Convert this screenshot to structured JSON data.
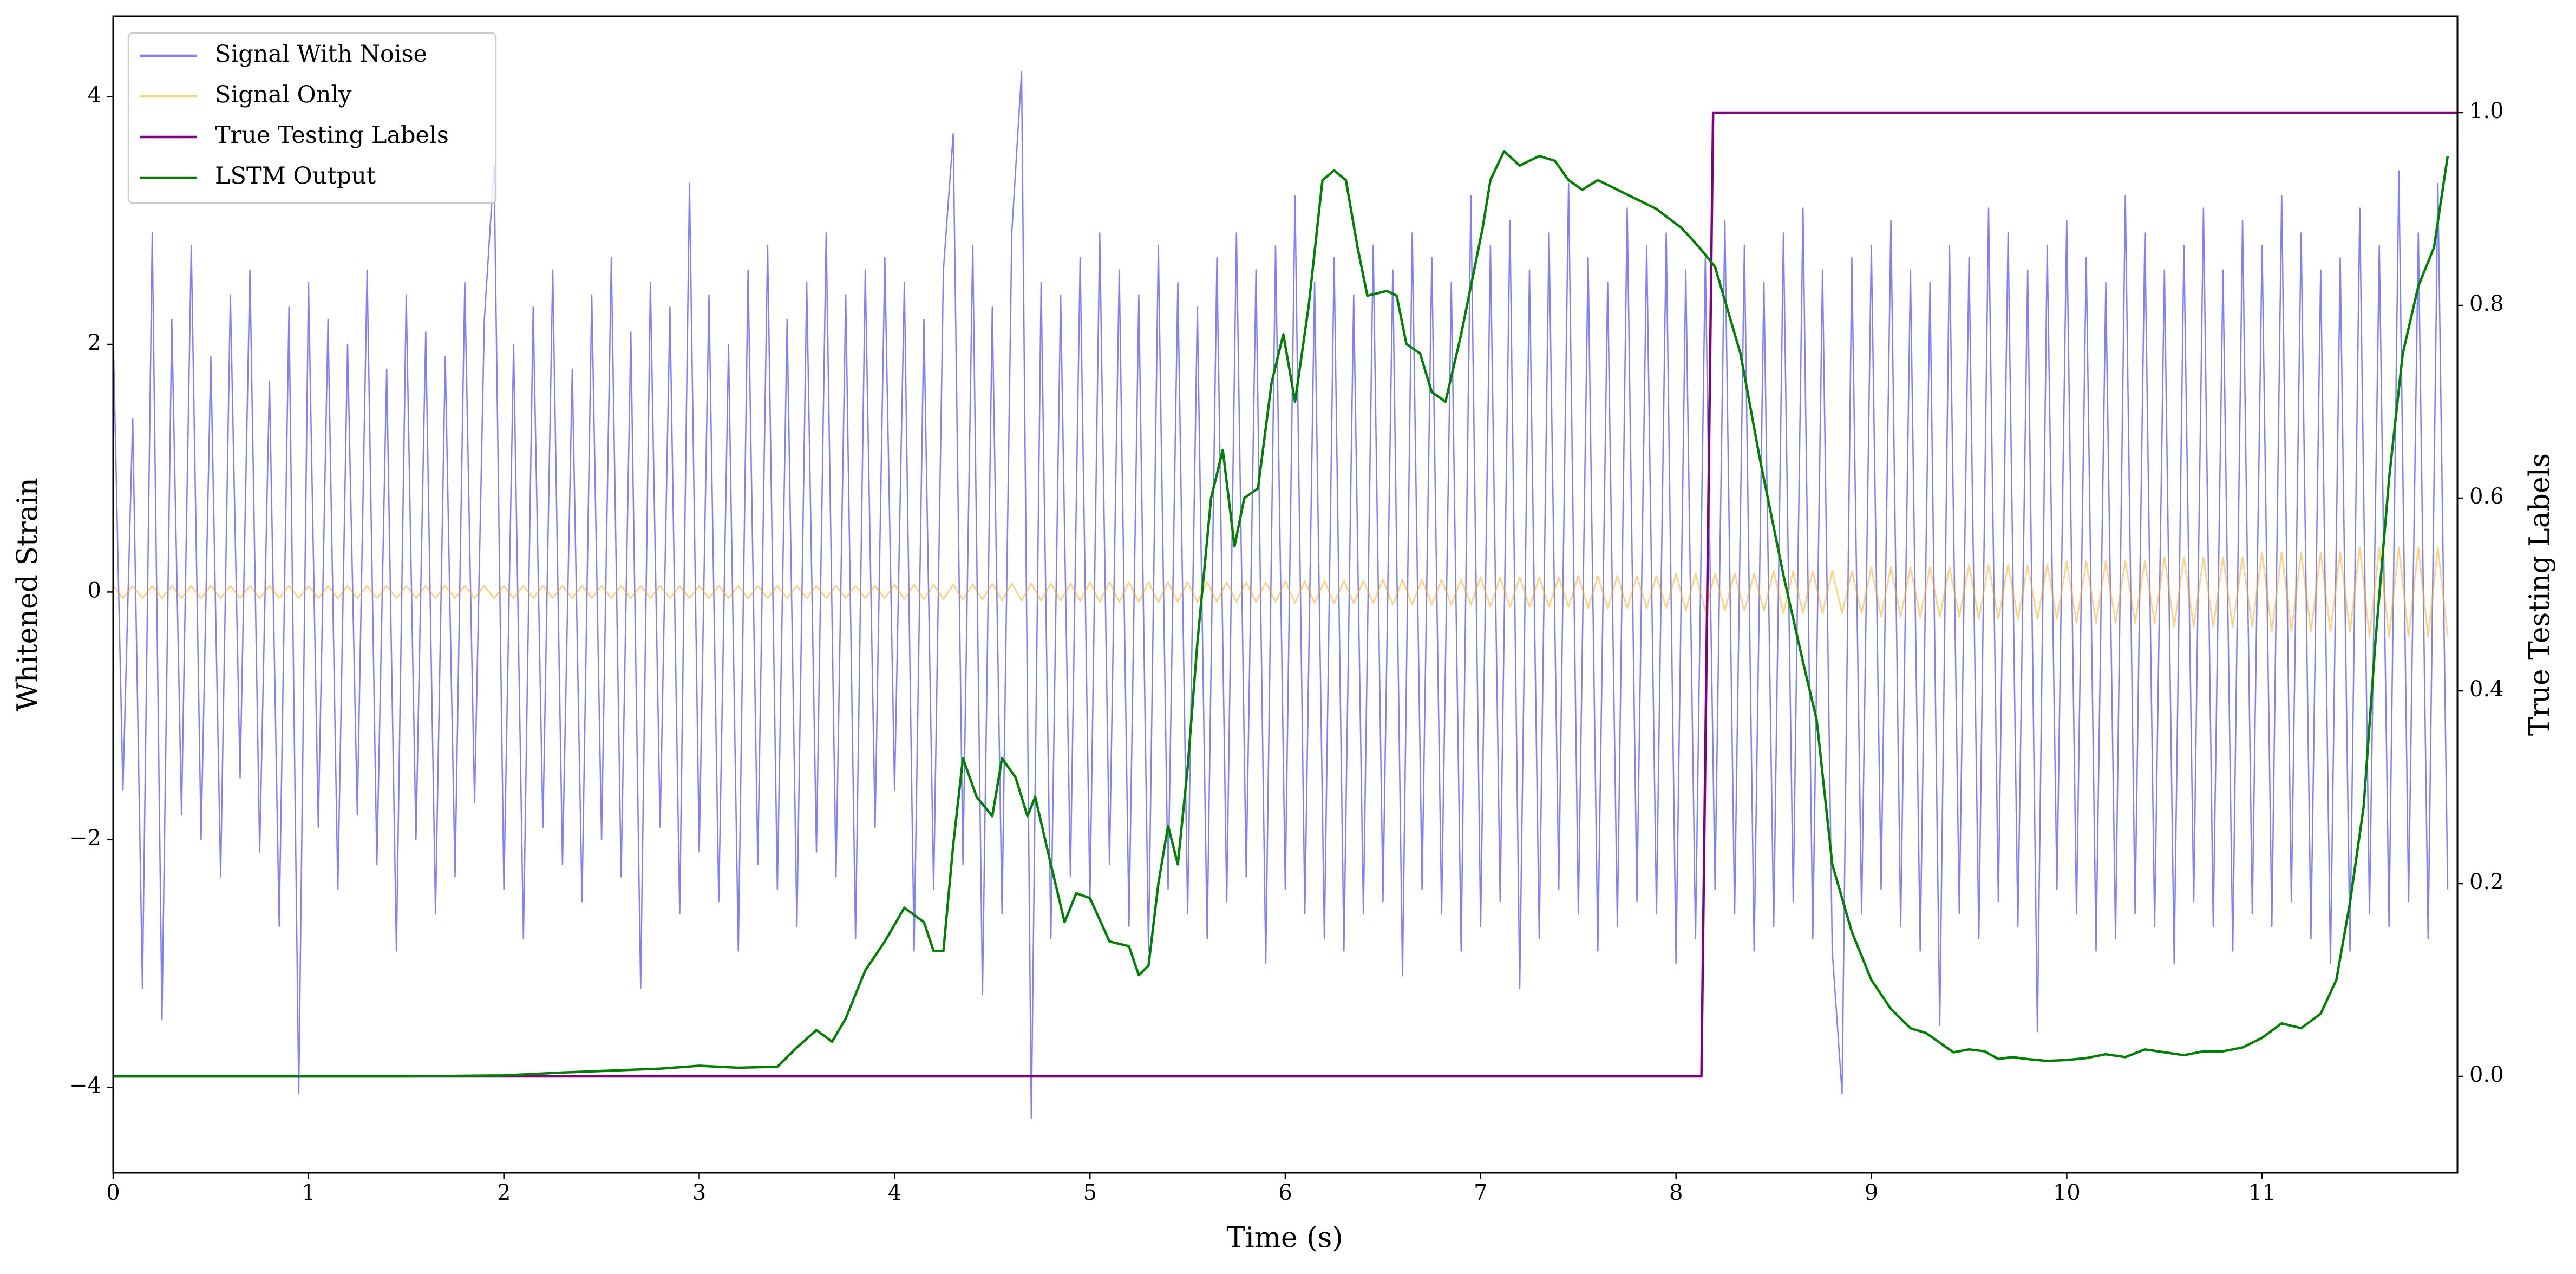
{
  "chart_data": {
    "type": "line",
    "xlabel": "Time (s)",
    "ylabel": "Whitened Strain",
    "y2label": "True Testing Labels",
    "legend": "upper left",
    "xlim": [
      0,
      12
    ],
    "xticks": [
      0,
      1,
      2,
      3,
      4,
      5,
      6,
      7,
      8,
      9,
      10,
      11
    ],
    "ylim": [
      -4.69,
      4.65
    ],
    "yticks": [
      {
        "value": -4,
        "label": "−4"
      },
      {
        "value": -2,
        "label": "−2"
      },
      0,
      2,
      4
    ],
    "y2lim": [
      -0.1,
      1.1
    ],
    "y2ticks": [
      {
        "value": 0,
        "label": "0.0"
      },
      {
        "value": 0.2,
        "label": "0.2"
      },
      {
        "value": 0.4,
        "label": "0.4"
      },
      {
        "value": 0.6,
        "label": "0.6"
      },
      {
        "value": 0.8,
        "label": "0.8"
      },
      {
        "value": 1,
        "label": "1.0"
      }
    ],
    "x": [
      0,
      0.05,
      0.1,
      0.15,
      0.2,
      0.25,
      0.3,
      0.35,
      0.4,
      0.45,
      0.5,
      0.55,
      0.6,
      0.65,
      0.7,
      0.75,
      0.8,
      0.85,
      0.9,
      0.95,
      1,
      1.05,
      1.1,
      1.15,
      1.2,
      1.25,
      1.3,
      1.35,
      1.4,
      1.45,
      1.5,
      1.55,
      1.6,
      1.65,
      1.7,
      1.75,
      1.8,
      1.85,
      1.9,
      1.95,
      2,
      2.05,
      2.1,
      2.15,
      2.2,
      2.25,
      2.3,
      2.35,
      2.4,
      2.45,
      2.5,
      2.55,
      2.6,
      2.65,
      2.7,
      2.75,
      2.8,
      2.85,
      2.9,
      2.95,
      3,
      3.05,
      3.1,
      3.15,
      3.2,
      3.25,
      3.3,
      3.35,
      3.4,
      3.45,
      3.5,
      3.55,
      3.6,
      3.65,
      3.7,
      3.75,
      3.8,
      3.85,
      3.9,
      3.95,
      4,
      4.05,
      4.1,
      4.15,
      4.2,
      4.25,
      4.3,
      4.35,
      4.4,
      4.45,
      4.5,
      4.55,
      4.6,
      4.65,
      4.7,
      4.75,
      4.8,
      4.85,
      4.9,
      4.95,
      5,
      5.05,
      5.1,
      5.15,
      5.2,
      5.25,
      5.3,
      5.35,
      5.4,
      5.45,
      5.5,
      5.55,
      5.6,
      5.65,
      5.7,
      5.75,
      5.8,
      5.85,
      5.9,
      5.95,
      6,
      6.05,
      6.1,
      6.15,
      6.2,
      6.25,
      6.3,
      6.35,
      6.4,
      6.45,
      6.5,
      6.55,
      6.6,
      6.65,
      6.7,
      6.75,
      6.8,
      6.85,
      6.9,
      6.95,
      7,
      7.05,
      7.1,
      7.15,
      7.2,
      7.25,
      7.3,
      7.35,
      7.4,
      7.45,
      7.5,
      7.55,
      7.6,
      7.65,
      7.7,
      7.75,
      7.8,
      7.85,
      7.9,
      7.95,
      8,
      8.05,
      8.1,
      8.15,
      8.2,
      8.25,
      8.3,
      8.35,
      8.4,
      8.45,
      8.5,
      8.55,
      8.6,
      8.65,
      8.7,
      8.75,
      8.8,
      8.85,
      8.9,
      8.95,
      9,
      9.05,
      9.1,
      9.15,
      9.2,
      9.25,
      9.3,
      9.35,
      9.4,
      9.45,
      9.5,
      9.55,
      9.6,
      9.65,
      9.7,
      9.75,
      9.8,
      9.85,
      9.9,
      9.95,
      10,
      10.05,
      10.1,
      10.15,
      10.2,
      10.25,
      10.3,
      10.35,
      10.4,
      10.45,
      10.5,
      10.55,
      10.6,
      10.65,
      10.7,
      10.75,
      10.8,
      10.85,
      10.9,
      10.95,
      11,
      11.05,
      11.1,
      11.15,
      11.2,
      11.25,
      11.3,
      11.35,
      11.4,
      11.45,
      11.5,
      11.55,
      11.6,
      11.65,
      11.7,
      11.75,
      11.8,
      11.85,
      11.9,
      11.95
    ],
    "series": [
      {
        "name": "Signal With Noise",
        "color": "blue",
        "alpha": 0.5,
        "axis": "y",
        "values": [
          2.1,
          -1.6,
          1.4,
          -3.2,
          2.9,
          -3.45,
          2.2,
          -1.8,
          2.8,
          -2.0,
          1.9,
          -2.3,
          2.4,
          -1.5,
          2.6,
          -2.1,
          1.7,
          -2.7,
          2.3,
          -4.05,
          2.5,
          -1.9,
          2.2,
          -2.4,
          2.0,
          -1.8,
          2.6,
          -2.2,
          1.8,
          -2.9,
          2.4,
          -2.0,
          2.1,
          -2.6,
          1.9,
          -2.3,
          2.5,
          -1.7,
          2.2,
          3.45,
          -2.4,
          2.0,
          -2.8,
          2.3,
          -1.9,
          2.6,
          -2.2,
          1.8,
          -2.5,
          2.4,
          -2.0,
          2.7,
          -2.3,
          2.1,
          -3.2,
          2.5,
          -1.9,
          2.3,
          -2.6,
          3.3,
          -2.1,
          2.4,
          -2.5,
          2.0,
          -2.9,
          2.6,
          -2.2,
          2.8,
          -2.4,
          2.2,
          -2.7,
          2.5,
          -2.1,
          2.9,
          -2.3,
          2.4,
          -2.8,
          2.6,
          -1.9,
          2.7,
          -1.6,
          2.5,
          -2.9,
          2.2,
          -2.4,
          2.6,
          3.7,
          -2.2,
          2.8,
          -3.25,
          2.3,
          -2.6,
          2.9,
          4.2,
          -4.25,
          2.5,
          -2.8,
          2.4,
          -2.3,
          2.7,
          -2.5,
          2.9,
          -2.2,
          2.6,
          -2.7,
          2.4,
          -2.9,
          2.8,
          -2.4,
          2.5,
          -2.6,
          2.3,
          -2.8,
          2.7,
          -2.5,
          2.9,
          -2.3,
          2.6,
          -3.0,
          2.8,
          -2.4,
          3.2,
          -2.6,
          2.5,
          -2.8,
          2.7,
          -2.9,
          2.4,
          -2.6,
          2.8,
          -2.5,
          2.6,
          -3.1,
          2.9,
          -2.4,
          2.7,
          -2.6,
          2.5,
          -2.9,
          3.2,
          -2.7,
          2.8,
          -2.5,
          3.0,
          -3.2,
          2.6,
          -2.8,
          2.9,
          -2.4,
          3.3,
          -2.6,
          2.7,
          -2.9,
          2.5,
          -2.7,
          3.1,
          -2.5,
          2.8,
          -2.6,
          2.9,
          -3.0,
          2.6,
          -2.8,
          2.7,
          -2.4,
          3.0,
          -2.6,
          2.8,
          -2.9,
          2.5,
          -2.7,
          2.9,
          -2.5,
          3.1,
          -2.8,
          2.6,
          -2.9,
          -4.05,
          2.7,
          -2.6,
          2.8,
          -2.4,
          3.0,
          -2.7,
          2.6,
          -2.9,
          2.5,
          -3.5,
          2.8,
          -2.6,
          2.7,
          -2.8,
          3.1,
          -2.5,
          2.9,
          -2.7,
          2.6,
          -3.55,
          2.8,
          -2.4,
          3.0,
          -2.6,
          2.7,
          -2.9,
          2.5,
          -2.8,
          3.2,
          -2.6,
          2.9,
          -2.7,
          2.6,
          -3.0,
          2.8,
          -2.5,
          3.1,
          -2.7,
          2.6,
          -2.9,
          3.0,
          -2.6,
          2.8,
          -2.7,
          3.2,
          -2.5,
          2.9,
          -2.8,
          2.6,
          -3.0,
          2.7,
          -2.9,
          3.1,
          -2.6,
          2.8,
          -2.7,
          3.4,
          -2.5,
          2.9,
          -2.8,
          3.3,
          -2.4
        ]
      },
      {
        "name": "Signal Only",
        "color": "orange",
        "alpha": 0.5,
        "axis": "y",
        "values": [
          0.05,
          -0.05,
          0.05,
          -0.05,
          0.05,
          -0.05,
          0.05,
          -0.05,
          0.05,
          -0.05,
          0.05,
          -0.05,
          0.05,
          -0.05,
          0.05,
          -0.05,
          0.05,
          -0.05,
          0.05,
          -0.05,
          0.05,
          -0.05,
          0.05,
          -0.05,
          0.05,
          -0.05,
          0.05,
          -0.05,
          0.05,
          -0.05,
          0.05,
          -0.05,
          0.05,
          -0.05,
          0.05,
          -0.05,
          0.05,
          -0.05,
          0.05,
          -0.05,
          0.05,
          -0.05,
          0.05,
          -0.05,
          0.05,
          -0.05,
          0.05,
          -0.05,
          0.05,
          -0.05,
          0.05,
          -0.05,
          0.05,
          -0.05,
          0.05,
          -0.05,
          0.05,
          -0.05,
          0.05,
          -0.05,
          0.05,
          -0.05,
          0.05,
          -0.05,
          0.05,
          -0.05,
          0.05,
          -0.05,
          0.05,
          -0.05,
          0.05,
          -0.05,
          0.05,
          -0.05,
          0.05,
          -0.05,
          0.05,
          -0.05,
          0.05,
          -0.05,
          0.06,
          -0.06,
          0.06,
          -0.06,
          0.06,
          -0.06,
          0.06,
          -0.06,
          0.06,
          -0.06,
          0.07,
          -0.07,
          0.07,
          -0.07,
          0.07,
          -0.07,
          0.07,
          -0.07,
          0.07,
          -0.07,
          0.08,
          -0.08,
          0.08,
          -0.08,
          0.08,
          -0.08,
          0.08,
          -0.08,
          0.08,
          -0.08,
          0.08,
          -0.08,
          0.08,
          -0.08,
          0.08,
          -0.08,
          0.08,
          -0.08,
          0.08,
          -0.08,
          0.09,
          -0.09,
          0.09,
          -0.09,
          0.09,
          -0.09,
          0.09,
          -0.09,
          0.09,
          -0.09,
          0.1,
          -0.1,
          0.1,
          -0.1,
          0.1,
          -0.1,
          0.1,
          -0.1,
          0.1,
          -0.1,
          0.12,
          -0.12,
          0.12,
          -0.12,
          0.12,
          -0.12,
          0.12,
          -0.12,
          0.12,
          -0.12,
          0.13,
          -0.13,
          0.13,
          -0.13,
          0.13,
          -0.13,
          0.13,
          -0.13,
          0.13,
          -0.13,
          0.15,
          -0.15,
          0.15,
          -0.15,
          0.15,
          -0.15,
          0.15,
          -0.15,
          0.15,
          -0.15,
          0.17,
          -0.17,
          0.17,
          -0.17,
          0.17,
          -0.17,
          0.17,
          -0.17,
          0.17,
          -0.17,
          0.2,
          -0.2,
          0.2,
          -0.2,
          0.2,
          -0.2,
          0.2,
          -0.2,
          0.2,
          -0.2,
          0.22,
          -0.22,
          0.22,
          -0.22,
          0.22,
          -0.22,
          0.22,
          -0.22,
          0.22,
          -0.22,
          0.25,
          -0.25,
          0.25,
          -0.25,
          0.25,
          -0.25,
          0.25,
          -0.25,
          0.25,
          -0.25,
          0.28,
          -0.28,
          0.28,
          -0.28,
          0.28,
          -0.28,
          0.28,
          -0.28,
          0.28,
          -0.28,
          0.32,
          -0.32,
          0.32,
          -0.32,
          0.32,
          -0.32,
          0.32,
          -0.32,
          0.32,
          -0.32,
          0.36,
          -0.36,
          0.36,
          -0.36,
          0.36,
          -0.36,
          0.36,
          -0.36,
          0.36,
          -0.36
        ]
      },
      {
        "name": "True Testing Labels",
        "color": "purple",
        "alpha": 1,
        "axis": "y2",
        "x": [
          0,
          8.13,
          8.19,
          12
        ],
        "values": [
          0,
          0,
          1,
          1
        ]
      },
      {
        "name": "LSTM Output",
        "color": "green",
        "alpha": 1,
        "axis": "y2",
        "x": [
          0,
          1.5,
          2.0,
          2.3,
          2.8,
          3.0,
          3.2,
          3.4,
          3.5,
          3.6,
          3.68,
          3.75,
          3.85,
          3.95,
          4.05,
          4.15,
          4.2,
          4.25,
          4.3,
          4.35,
          4.42,
          4.5,
          4.55,
          4.62,
          4.68,
          4.72,
          4.8,
          4.87,
          4.93,
          5.0,
          5.1,
          5.2,
          5.25,
          5.3,
          5.35,
          5.4,
          5.45,
          5.5,
          5.55,
          5.62,
          5.68,
          5.74,
          5.79,
          5.86,
          5.93,
          5.99,
          6.05,
          6.12,
          6.19,
          6.25,
          6.31,
          6.37,
          6.42,
          6.52,
          6.57,
          6.62,
          6.69,
          6.75,
          6.82,
          6.9,
          7.01,
          7.05,
          7.12,
          7.2,
          7.3,
          7.38,
          7.45,
          7.52,
          7.6,
          7.7,
          7.8,
          7.9,
          8.03,
          8.12,
          8.2,
          8.33,
          8.43,
          8.55,
          8.65,
          8.72,
          8.8,
          8.9,
          9.0,
          9.1,
          9.2,
          9.28,
          9.35,
          9.42,
          9.5,
          9.58,
          9.65,
          9.72,
          9.8,
          9.9,
          10.0,
          10.1,
          10.2,
          10.3,
          10.4,
          10.5,
          10.6,
          10.7,
          10.8,
          10.9,
          11.0,
          11.1,
          11.2,
          11.3,
          11.38,
          11.45,
          11.52,
          11.58,
          11.65,
          11.72,
          11.8,
          11.88,
          11.95
        ],
        "values": [
          0,
          0,
          0.001,
          0.004,
          0.008,
          0.011,
          0.009,
          0.01,
          0.03,
          0.048,
          0.036,
          0.06,
          0.11,
          0.14,
          0.175,
          0.16,
          0.13,
          0.13,
          0.24,
          0.33,
          0.29,
          0.27,
          0.33,
          0.31,
          0.27,
          0.29,
          0.22,
          0.16,
          0.19,
          0.185,
          0.14,
          0.135,
          0.105,
          0.115,
          0.2,
          0.26,
          0.22,
          0.32,
          0.45,
          0.6,
          0.65,
          0.55,
          0.6,
          0.61,
          0.72,
          0.77,
          0.7,
          0.8,
          0.93,
          0.94,
          0.93,
          0.86,
          0.81,
          0.815,
          0.81,
          0.76,
          0.75,
          0.71,
          0.7,
          0.77,
          0.88,
          0.93,
          0.96,
          0.945,
          0.955,
          0.95,
          0.93,
          0.92,
          0.93,
          0.92,
          0.91,
          0.9,
          0.88,
          0.86,
          0.84,
          0.75,
          0.64,
          0.52,
          0.43,
          0.37,
          0.22,
          0.15,
          0.1,
          0.07,
          0.05,
          0.045,
          0.035,
          0.025,
          0.028,
          0.026,
          0.018,
          0.02,
          0.018,
          0.016,
          0.017,
          0.019,
          0.023,
          0.02,
          0.028,
          0.025,
          0.022,
          0.026,
          0.026,
          0.03,
          0.04,
          0.055,
          0.05,
          0.065,
          0.1,
          0.18,
          0.28,
          0.45,
          0.62,
          0.75,
          0.82,
          0.86,
          0.955
        ]
      }
    ]
  }
}
